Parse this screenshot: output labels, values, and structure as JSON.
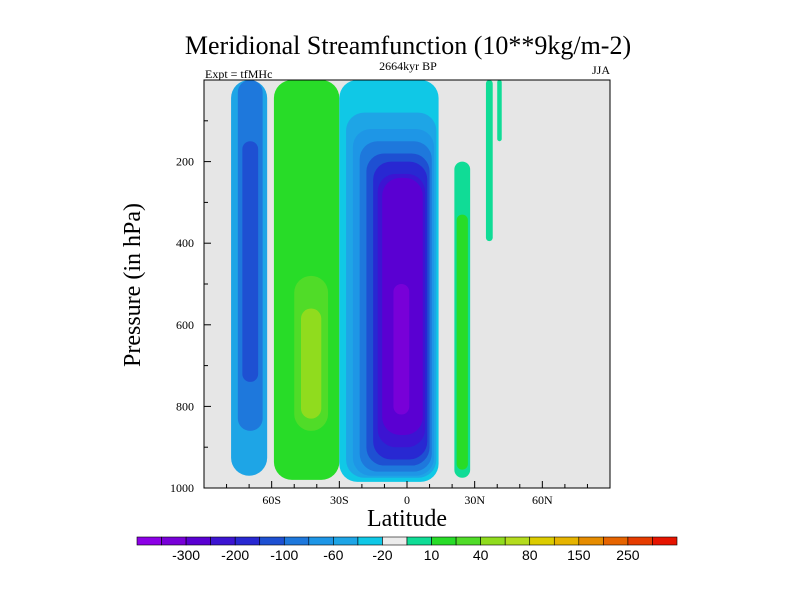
{
  "chart_data": {
    "type": "contour",
    "title": "Meridional Streamfunction (10**9kg/m-2)",
    "subtitle": "2664kyr BP",
    "left_note": "Expt = tfMHc",
    "right_note": "JJA",
    "xlabel": "Latitude",
    "ylabel": "Pressure (in hPa)",
    "xlim": [
      -90,
      90
    ],
    "ylim": [
      1000,
      0
    ],
    "x_ticks": [
      {
        "value": -60,
        "label": "60S"
      },
      {
        "value": -30,
        "label": "30S"
      },
      {
        "value": 0,
        "label": "0"
      },
      {
        "value": 30,
        "label": "30N"
      },
      {
        "value": 60,
        "label": "60N"
      }
    ],
    "y_ticks": [
      {
        "value": 200,
        "label": "200"
      },
      {
        "value": 400,
        "label": "400"
      },
      {
        "value": 600,
        "label": "600"
      },
      {
        "value": 800,
        "label": "800"
      },
      {
        "value": 1000,
        "label": "1000"
      }
    ],
    "colorbar": {
      "colors": [
        "#8c00e6",
        "#7800d8",
        "#5a00d2",
        "#3c14d2",
        "#2828d2",
        "#1e50d2",
        "#1e78dc",
        "#1e96e6",
        "#1ea5e6",
        "#10c8e6",
        "#ececec",
        "#10dc96",
        "#28dc28",
        "#50dc28",
        "#90dc1e",
        "#b4dc1e",
        "#dccc00",
        "#e6b400",
        "#e68c00",
        "#e66400",
        "#e63c00",
        "#e61400"
      ],
      "labels": [
        {
          "index": 1,
          "text": "-300"
        },
        {
          "index": 3,
          "text": "-200"
        },
        {
          "index": 5,
          "text": "-100"
        },
        {
          "index": 7,
          "text": "-60"
        },
        {
          "index": 9,
          "text": "-20"
        },
        {
          "index": 11,
          "text": "10"
        },
        {
          "index": 13,
          "text": "40"
        },
        {
          "index": 15,
          "text": "80"
        },
        {
          "index": 17,
          "text": "150"
        },
        {
          "index": 19,
          "text": "250"
        }
      ]
    },
    "cells": [
      {
        "name": "sh-polar-cell",
        "color": "#1ea5e6",
        "lat": [
          -78,
          -62
        ],
        "p": [
          0,
          970
        ]
      },
      {
        "name": "sh-polar-cell-inner",
        "color": "#1e78dc",
        "lat": [
          -75,
          -64
        ],
        "p": [
          0,
          860
        ]
      },
      {
        "name": "sh-polar-cell-core",
        "color": "#1e50d2",
        "lat": [
          -73,
          -66
        ],
        "p": [
          150,
          740
        ]
      },
      {
        "name": "sh-ferrel-cell",
        "color": "#28dc28",
        "lat": [
          -59,
          -30
        ],
        "p": [
          0,
          980
        ]
      },
      {
        "name": "sh-ferrel-cell-core",
        "color": "#50dc28",
        "lat": [
          -50,
          -35
        ],
        "p": [
          480,
          860
        ]
      },
      {
        "name": "sh-ferrel-cell-peak",
        "color": "#90dc1e",
        "lat": [
          -47,
          -38
        ],
        "p": [
          560,
          830
        ]
      },
      {
        "name": "hadley-cell-outer",
        "color": "#10c8e6",
        "lat": [
          -30,
          14
        ],
        "p": [
          0,
          985
        ]
      },
      {
        "name": "hadley-cell-20",
        "color": "#1ea5e6",
        "lat": [
          -27,
          13
        ],
        "p": [
          80,
          975
        ]
      },
      {
        "name": "hadley-cell-40",
        "color": "#1e96e6",
        "lat": [
          -24,
          12
        ],
        "p": [
          120,
          970
        ]
      },
      {
        "name": "hadley-cell-60",
        "color": "#1e78dc",
        "lat": [
          -21,
          11
        ],
        "p": [
          150,
          960
        ]
      },
      {
        "name": "hadley-cell-100",
        "color": "#1e50d2",
        "lat": [
          -18,
          10
        ],
        "p": [
          180,
          945
        ]
      },
      {
        "name": "hadley-cell-150",
        "color": "#2828d2",
        "lat": [
          -15,
          9
        ],
        "p": [
          200,
          930
        ]
      },
      {
        "name": "hadley-cell-200",
        "color": "#3c14d2",
        "lat": [
          -13,
          8
        ],
        "p": [
          230,
          900
        ]
      },
      {
        "name": "hadley-cell-250",
        "color": "#5a00d2",
        "lat": [
          -11,
          7
        ],
        "p": [
          240,
          870
        ]
      },
      {
        "name": "hadley-cell-core",
        "color": "#7800d8",
        "lat": [
          -6,
          1
        ],
        "p": [
          500,
          820
        ]
      },
      {
        "name": "nh-cell",
        "color": "#10dc96",
        "lat": [
          21,
          28
        ],
        "p": [
          200,
          975
        ]
      },
      {
        "name": "nh-cell-core",
        "color": "#28dc28",
        "lat": [
          22,
          27
        ],
        "p": [
          330,
          955
        ]
      },
      {
        "name": "nh-upper-tongue",
        "color": "#10dc96",
        "lat": [
          35,
          38
        ],
        "p": [
          0,
          395
        ]
      },
      {
        "name": "nh-upper-tongue-2",
        "color": "#10dc96",
        "lat": [
          40,
          42
        ],
        "p": [
          0,
          150
        ]
      }
    ]
  }
}
